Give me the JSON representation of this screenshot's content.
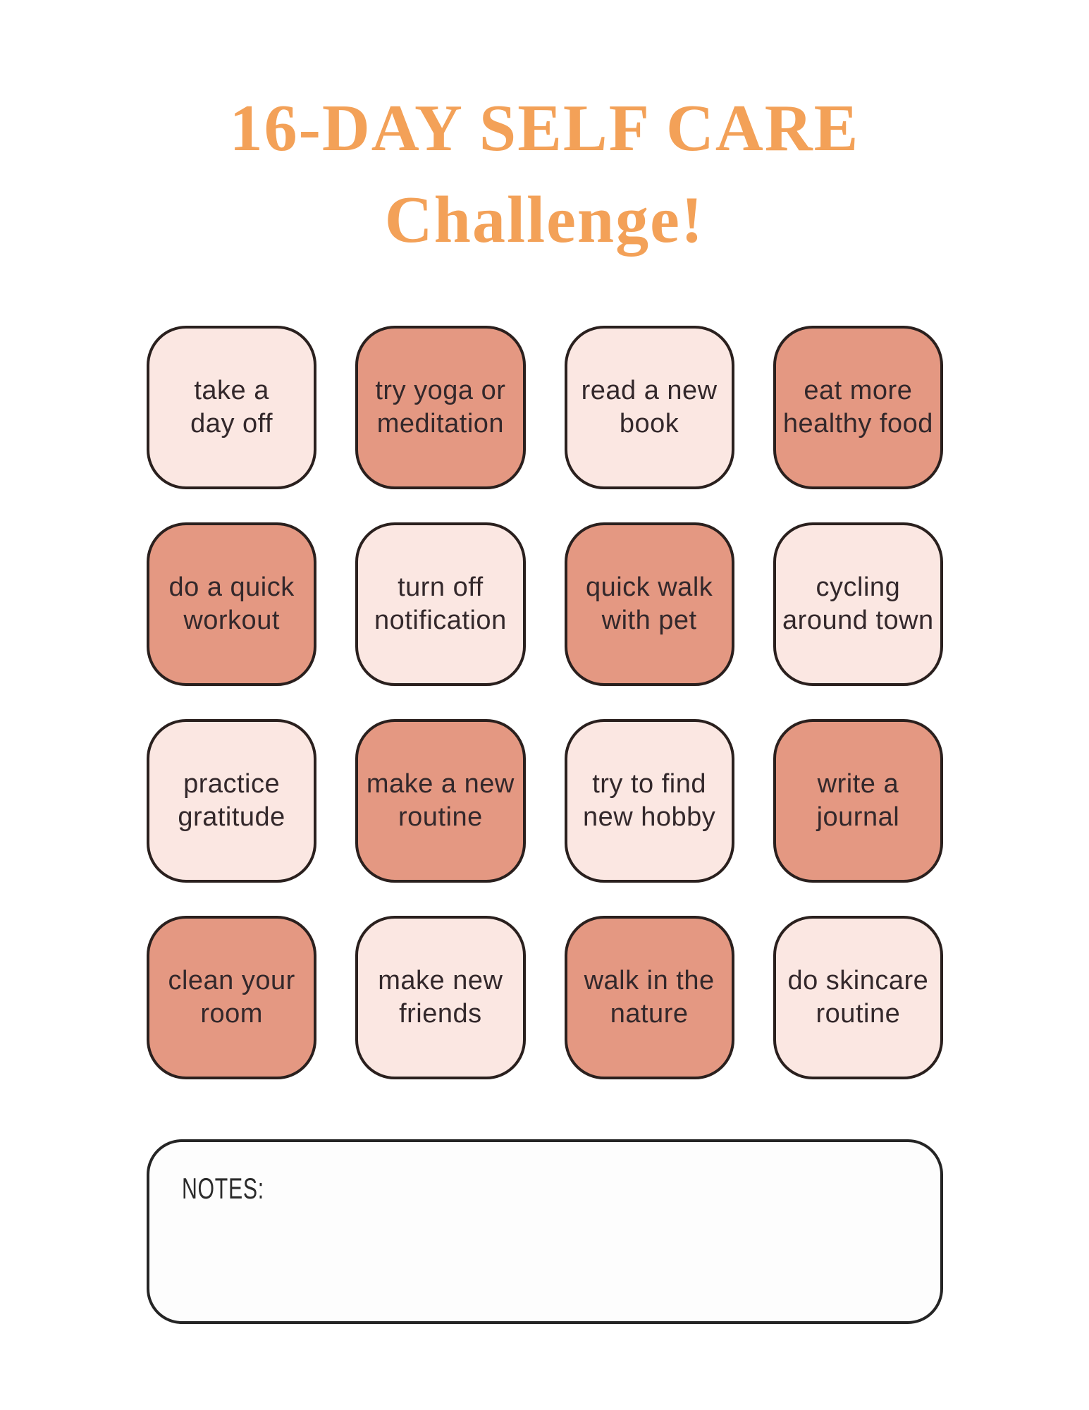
{
  "title": {
    "line1": "16-DAY SELF CARE",
    "line2": "Challenge!",
    "color": "#F3A158"
  },
  "colors": {
    "background": "#FFFFFF",
    "card_light": "#FBE7E2",
    "card_dark": "#E49882",
    "card_border": "#2A201E",
    "card_text": "#33282B",
    "title_orange": "#F3A158"
  },
  "grid": {
    "cards": [
      {
        "label": "take a\nday off",
        "variant": "light"
      },
      {
        "label": "try yoga or\nmeditation",
        "variant": "dark"
      },
      {
        "label": "read a new\nbook",
        "variant": "light"
      },
      {
        "label": "eat more\nhealthy food",
        "variant": "dark"
      },
      {
        "label": "do a quick\nworkout",
        "variant": "dark"
      },
      {
        "label": "turn off\nnotification",
        "variant": "light"
      },
      {
        "label": "quick walk\nwith pet",
        "variant": "dark"
      },
      {
        "label": "cycling\naround town",
        "variant": "light"
      },
      {
        "label": "practice\ngratitude",
        "variant": "light"
      },
      {
        "label": "make a new\nroutine",
        "variant": "dark"
      },
      {
        "label": "try to find\nnew hobby",
        "variant": "light"
      },
      {
        "label": "write a\njournal",
        "variant": "dark"
      },
      {
        "label": "clean your\nroom",
        "variant": "dark"
      },
      {
        "label": "make new\nfriends",
        "variant": "light"
      },
      {
        "label": "walk in the\nnature",
        "variant": "dark"
      },
      {
        "label": "do skincare\nroutine",
        "variant": "light"
      }
    ]
  },
  "notes": {
    "label": "NOTES:"
  }
}
